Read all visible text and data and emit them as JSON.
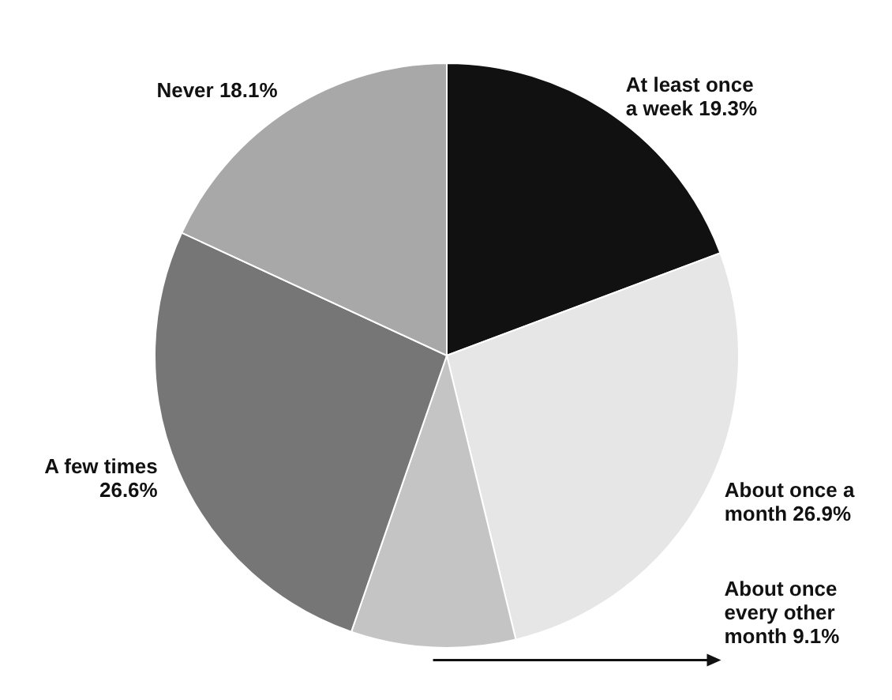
{
  "chart_data": {
    "type": "pie",
    "categories": [
      "At least once a week",
      "About once a month",
      "About once every other month",
      "A few times",
      "Never"
    ],
    "values": [
      19.3,
      26.9,
      9.1,
      26.6,
      18.1
    ],
    "value_labels": [
      "19.3%",
      "26.9%",
      "9.1%",
      "26.6%",
      "18.1%"
    ],
    "colors": [
      "#111111",
      "#e6e6e6",
      "#c4c4c4",
      "#767676",
      "#a8a8a8"
    ],
    "legend": false
  }
}
